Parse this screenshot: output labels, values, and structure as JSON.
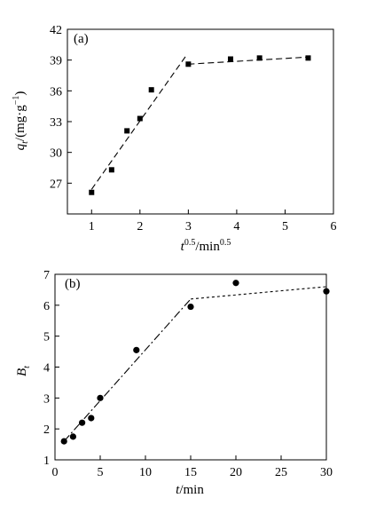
{
  "chart_data": [
    {
      "type": "scatter",
      "panel_label": "(a)",
      "xlim": [
        0.5,
        6
      ],
      "ylim": [
        24,
        42
      ],
      "xticks": [
        "1",
        "2",
        "3",
        "4",
        "5",
        "6"
      ],
      "yticks": [
        "27",
        "30",
        "33",
        "36",
        "39",
        "42"
      ],
      "xlabel": {
        "base": "t",
        "sup": "0.5",
        "mid": "/min",
        "sup2": "0.5"
      },
      "ylabel": {
        "base": "q",
        "sub": "t",
        "unit_pre": "/(mg·g",
        "unit_sup": "−1",
        "unit_post": ")"
      },
      "marker": "square",
      "points": [
        {
          "x": 1.0,
          "y": 26.1
        },
        {
          "x": 1.414,
          "y": 28.3
        },
        {
          "x": 1.732,
          "y": 32.1
        },
        {
          "x": 2.0,
          "y": 33.3
        },
        {
          "x": 2.236,
          "y": 36.1
        },
        {
          "x": 3.0,
          "y": 38.6
        },
        {
          "x": 3.873,
          "y": 39.1
        },
        {
          "x": 4.472,
          "y": 39.2
        },
        {
          "x": 5.477,
          "y": 39.2
        }
      ],
      "fits": [
        {
          "style": "dashed",
          "x": [
            1.0,
            2.95
          ],
          "y": [
            26.4,
            39.4
          ]
        },
        {
          "style": "dashed",
          "x": [
            3.0,
            5.5
          ],
          "y": [
            38.6,
            39.3
          ]
        }
      ]
    },
    {
      "type": "scatter",
      "panel_label": "(b)",
      "xlim": [
        0,
        30
      ],
      "ylim": [
        1,
        7
      ],
      "xticks": [
        "0",
        "5",
        "10",
        "15",
        "20",
        "25",
        "30"
      ],
      "yticks": [
        "1",
        "2",
        "3",
        "4",
        "5",
        "6",
        "7"
      ],
      "xlabel": {
        "base": "t",
        "mid": "/min"
      },
      "ylabel": {
        "base": "B",
        "sub": "t"
      },
      "marker": "circle",
      "points": [
        {
          "x": 1,
          "y": 1.6
        },
        {
          "x": 2,
          "y": 1.75
        },
        {
          "x": 3,
          "y": 2.2
        },
        {
          "x": 4,
          "y": 2.35
        },
        {
          "x": 5,
          "y": 3.0
        },
        {
          "x": 9,
          "y": 4.55
        },
        {
          "x": 15,
          "y": 5.95
        },
        {
          "x": 20,
          "y": 6.72
        },
        {
          "x": 30,
          "y": 6.45
        }
      ],
      "fits": [
        {
          "style": "dashdot",
          "x": [
            1,
            15
          ],
          "y": [
            1.6,
            6.2
          ]
        },
        {
          "style": "dotted",
          "x": [
            15,
            30
          ],
          "y": [
            6.2,
            6.6
          ]
        }
      ]
    }
  ]
}
